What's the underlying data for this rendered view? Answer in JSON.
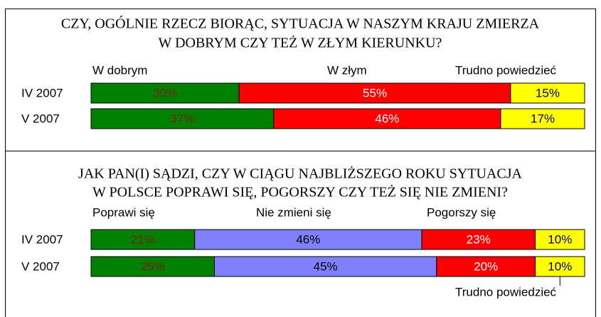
{
  "chart_data": [
    {
      "type": "bar",
      "stacked": true,
      "orientation": "horizontal",
      "title": [
        "CZY, OGÓLNIE RZECZ BIORĄC, SYTUACJA W NASZYM KRAJU ZMIERZA",
        "W DOBRYM CZY TEŻ W ZŁYM KIERUNKU?"
      ],
      "categories": [
        "IV 2007",
        "V 2007"
      ],
      "xlim": [
        0,
        100
      ],
      "series": [
        {
          "name": "W dobrym",
          "color": "#008000",
          "values": [
            30,
            37
          ],
          "value_labels": [
            "30%",
            "37%"
          ]
        },
        {
          "name": "W złym",
          "color": "#ff0000",
          "values": [
            55,
            46
          ],
          "value_labels": [
            "55%",
            "46%"
          ]
        },
        {
          "name": "Trudno powiedzieć",
          "color": "#ffff00",
          "values": [
            15,
            17
          ],
          "value_labels": [
            "15%",
            "17%"
          ]
        }
      ]
    },
    {
      "type": "bar",
      "stacked": true,
      "orientation": "horizontal",
      "title": [
        "JAK PAN(I) SĄDZI, CZY W CIĄGU NAJBLIŻSZEGO ROKU SYTUACJA",
        "W POLSCE POPRAWI SIĘ, POGORSZY CZY TEŻ SIĘ NIE ZMIENI?"
      ],
      "categories": [
        "IV 2007",
        "V 2007"
      ],
      "xlim": [
        0,
        100
      ],
      "series": [
        {
          "name": "Poprawi się",
          "color": "#008000",
          "values": [
            21,
            25
          ],
          "value_labels": [
            "21%",
            "25%"
          ]
        },
        {
          "name": "Nie zmieni się",
          "color": "#8080ff",
          "values": [
            46,
            45
          ],
          "value_labels": [
            "46%",
            "45%"
          ]
        },
        {
          "name": "Pogorszy się",
          "color": "#ff0000",
          "values": [
            23,
            20
          ],
          "value_labels": [
            "23%",
            "20%"
          ]
        },
        {
          "name": "Trudno powiedzieć",
          "color": "#ffff00",
          "values": [
            10,
            10
          ],
          "value_labels": [
            "10%",
            "10%"
          ]
        }
      ]
    }
  ]
}
